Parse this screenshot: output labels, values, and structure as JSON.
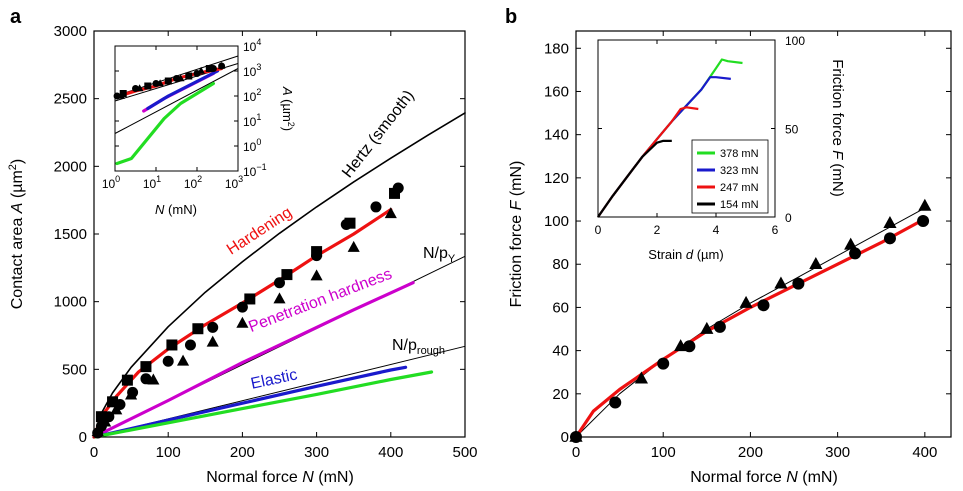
{
  "chart_data": [
    {
      "panel_label": "a",
      "type": "line",
      "xlabel": "Normal force N (mN)",
      "xlabel_parts": [
        "Normal force ",
        "N",
        " (mN)"
      ],
      "ylabel": "Contact area A (µm²)",
      "ylabel_parts": [
        "Contact area ",
        "A",
        " (µm",
        "2",
        ")"
      ],
      "xlim": [
        0,
        500
      ],
      "ylim": [
        0,
        3000
      ],
      "xticks": [
        "0",
        "100",
        "200",
        "300",
        "400",
        "500"
      ],
      "yticks": [
        "0",
        "500",
        "1000",
        "1500",
        "2000",
        "2500",
        "3000"
      ],
      "annotations": {
        "hertz": "Hertz (smooth)",
        "hardening": "Hardening",
        "npy_main": "N/p",
        "npy_sub": "Y",
        "penetration": "Penetration hardness",
        "nprough_main": "N/p",
        "nprough_sub": "rough",
        "elastic": "Elastic"
      },
      "series": [
        {
          "label": "Hertz (smooth)",
          "color": "#000000",
          "kind": "curve",
          "x": [
            0,
            10,
            25,
            50,
            100,
            150,
            200,
            250,
            300,
            350,
            400,
            450,
            500
          ],
          "y": [
            0,
            175,
            325,
            515,
            815,
            1070,
            1295,
            1505,
            1700,
            1885,
            2060,
            2230,
            2395
          ]
        },
        {
          "label": "N/pY",
          "color": "#000000",
          "kind": "thin",
          "x": [
            0,
            500
          ],
          "y": [
            0,
            1335
          ]
        },
        {
          "label": "N/prough",
          "color": "#000000",
          "kind": "thin",
          "x": [
            0,
            500
          ],
          "y": [
            0,
            670
          ]
        },
        {
          "label": "Penetration hardness",
          "color": "#cc00cc",
          "kind": "thick",
          "x": [
            0,
            100,
            200,
            300,
            350,
            430
          ],
          "y": [
            0,
            270,
            550,
            810,
            940,
            1140
          ]
        },
        {
          "label": "Elastic",
          "color": "#1a1acc",
          "kind": "thick",
          "x": [
            0,
            100,
            200,
            300,
            400,
            420
          ],
          "y": [
            0,
            125,
            250,
            375,
            495,
            515
          ]
        },
        {
          "label": "Elastic (green)",
          "color": "#22dd22",
          "kind": "thick",
          "x": [
            0,
            100,
            200,
            300,
            400,
            455
          ],
          "y": [
            0,
            105,
            210,
            315,
            425,
            480
          ]
        },
        {
          "label": "Hardening",
          "color": "#ee1111",
          "kind": "thick",
          "x": [
            0,
            10,
            30,
            60,
            100,
            150,
            200,
            250,
            300,
            350,
            400
          ],
          "y": [
            0,
            150,
            300,
            480,
            650,
            830,
            990,
            1160,
            1340,
            1500,
            1680
          ]
        },
        {
          "label": "circles",
          "color": "#000000",
          "kind": "markers",
          "marker": "circle",
          "x": [
            5,
            10,
            20,
            35,
            52,
            70,
            100,
            130,
            160,
            200,
            250,
            300,
            340,
            380,
            410
          ],
          "y": [
            30,
            80,
            150,
            240,
            330,
            430,
            560,
            680,
            810,
            960,
            1140,
            1340,
            1570,
            1700,
            1840
          ]
        },
        {
          "label": "squares",
          "color": "#000000",
          "kind": "markers",
          "marker": "square",
          "x": [
            10,
            25,
            45,
            70,
            105,
            140,
            210,
            260,
            300,
            345,
            405
          ],
          "y": [
            150,
            260,
            420,
            520,
            680,
            800,
            1020,
            1200,
            1370,
            1580,
            1800
          ]
        },
        {
          "label": "triangles",
          "color": "#000000",
          "kind": "markers",
          "marker": "triangle",
          "x": [
            5,
            15,
            30,
            50,
            80,
            120,
            160,
            200,
            250,
            300,
            350,
            400
          ],
          "y": [
            40,
            110,
            200,
            310,
            420,
            560,
            700,
            840,
            1020,
            1190,
            1400,
            1650
          ]
        }
      ],
      "inset": {
        "xlabel_parts": [
          "N",
          " (mN)"
        ],
        "ylabel_parts": [
          "A",
          " (µm",
          "2",
          ")"
        ],
        "x_log_range": [
          0,
          3
        ],
        "y_log_range": [
          -1,
          4
        ],
        "xticks": [
          {
            "base": "10",
            "exp": "0"
          },
          {
            "base": "10",
            "exp": "1"
          },
          {
            "base": "10",
            "exp": "2"
          },
          {
            "base": "10",
            "exp": "3"
          }
        ],
        "yticks": [
          {
            "base": "10",
            "exp": "−1"
          },
          {
            "base": "10",
            "exp": "0"
          },
          {
            "base": "10",
            "exp": "1"
          },
          {
            "base": "10",
            "exp": "2"
          },
          {
            "base": "10",
            "exp": "3"
          },
          {
            "base": "10",
            "exp": "4"
          }
        ],
        "series": [
          {
            "label": "guide upper",
            "color": "#000000",
            "kind": "thin",
            "lx": [
              0,
              3
            ],
            "ly": [
              2.0,
              3.6
            ]
          },
          {
            "label": "guide lower",
            "color": "#000000",
            "kind": "thin",
            "lx": [
              0,
              3
            ],
            "ly": [
              0.5,
              3.1
            ]
          },
          {
            "label": "guide mid",
            "color": "#000000",
            "kind": "thin",
            "lx": [
              0,
              3
            ],
            "ly": [
              1.8,
              3.3
            ]
          },
          {
            "label": "green",
            "color": "#22dd22",
            "kind": "thick",
            "lx": [
              0.05,
              0.4,
              0.8,
              1.2,
              1.6,
              2.0,
              2.4
            ],
            "ly": [
              -0.7,
              -0.5,
              0.3,
              1.1,
              1.7,
              2.1,
              2.5
            ]
          },
          {
            "label": "magenta",
            "color": "#cc00cc",
            "kind": "thick",
            "lx": [
              0.7,
              1.2,
              1.8,
              2.4
            ],
            "ly": [
              1.4,
              1.9,
              2.4,
              2.9
            ]
          },
          {
            "label": "blue",
            "color": "#1a1acc",
            "kind": "thick",
            "lx": [
              0.8,
              1.3,
              1.9,
              2.5
            ],
            "ly": [
              1.5,
              2.0,
              2.5,
              3.0
            ]
          },
          {
            "label": "red",
            "color": "#ee1111",
            "kind": "thick",
            "lx": [
              0.1,
              0.5,
              1.0,
              1.5,
              2.0,
              2.6
            ],
            "ly": [
              2.0,
              2.2,
              2.4,
              2.7,
              2.9,
              3.1
            ]
          },
          {
            "label": "circles",
            "color": "#000000",
            "kind": "markers",
            "marker": "circle",
            "lx": [
              0.05,
              0.5,
              1.0,
              1.5,
              2.0,
              2.4,
              2.6
            ],
            "ly": [
              2.0,
              2.3,
              2.5,
              2.7,
              2.9,
              3.1,
              3.2
            ]
          },
          {
            "label": "squares",
            "color": "#000000",
            "kind": "markers",
            "marker": "square",
            "lx": [
              0.2,
              0.8,
              1.3,
              1.8,
              2.3
            ],
            "ly": [
              2.1,
              2.4,
              2.6,
              2.8,
              3.1
            ]
          },
          {
            "label": "triangles",
            "color": "#000000",
            "kind": "markers",
            "marker": "triangle",
            "lx": [
              0.15,
              0.6,
              1.1,
              1.6,
              2.1,
              2.6
            ],
            "ly": [
              2.0,
              2.3,
              2.5,
              2.7,
              3.0,
              3.2
            ]
          }
        ]
      }
    },
    {
      "panel_label": "b",
      "type": "line",
      "xlabel": "Normal force N (mN)",
      "xlabel_parts": [
        "Normal force ",
        "N",
        " (mN)"
      ],
      "ylabel": "Friction force F (mN)",
      "ylabel_parts": [
        "Friction force ",
        "F",
        " (mN)"
      ],
      "xlim": [
        0,
        430
      ],
      "ylim": [
        0,
        188
      ],
      "xticks": [
        0,
        100,
        200,
        300,
        400
      ],
      "yticks": [
        0,
        20,
        40,
        60,
        80,
        100,
        120,
        140,
        160,
        180
      ],
      "series": [
        {
          "label": "fit",
          "color": "#000000",
          "kind": "thin",
          "x": [
            0,
            50,
            100,
            150,
            200,
            250,
            300,
            350,
            400
          ],
          "y": [
            0,
            20,
            36,
            50,
            62,
            73,
            84,
            95,
            106
          ]
        },
        {
          "label": "red",
          "color": "#ee1111",
          "kind": "thick",
          "x": [
            0,
            20,
            50,
            100,
            150,
            200,
            250,
            300,
            350,
            400
          ],
          "y": [
            0,
            12,
            22,
            36,
            49,
            60,
            70,
            80,
            90,
            101
          ]
        },
        {
          "label": "circles",
          "color": "#000000",
          "kind": "markers",
          "marker": "circle",
          "x": [
            0,
            45,
            100,
            130,
            165,
            215,
            255,
            320,
            360,
            398
          ],
          "y": [
            0,
            16,
            34,
            42,
            51,
            61,
            71,
            85,
            92,
            100
          ]
        },
        {
          "label": "triangles",
          "color": "#000000",
          "kind": "markers",
          "marker": "triangle",
          "x": [
            0,
            75,
            120,
            150,
            195,
            235,
            275,
            315,
            360,
            400
          ],
          "y": [
            0,
            27,
            42,
            50,
            62,
            71,
            80,
            89,
            99,
            107
          ]
        }
      ],
      "inset": {
        "xlabel_parts": [
          "Strain ",
          "d",
          " (µm)"
        ],
        "ylabel_parts": [
          "Friction force ",
          "F",
          " (mN)"
        ],
        "xlim": [
          0,
          6
        ],
        "ylim": [
          0,
          100
        ],
        "xticks": [
          0,
          2,
          4,
          6
        ],
        "yticks": [
          0,
          50,
          100
        ],
        "legend": [
          {
            "label": "378 mN",
            "color": "#22dd22"
          },
          {
            "label": "323 mN",
            "color": "#1a1acc"
          },
          {
            "label": "247 mN",
            "color": "#ee1111"
          },
          {
            "label": "154 mN",
            "color": "#000000"
          }
        ],
        "series": [
          {
            "label": "378 mN",
            "color": "#22dd22",
            "x": [
              0,
              0.5,
              1,
              1.5,
              2,
              2.5,
              3,
              3.5,
              4.0,
              4.2,
              4.4,
              4.9
            ],
            "y": [
              0,
              12,
              23,
              34,
              44,
              54,
              63,
              72,
              84,
              89,
              88,
              87
            ]
          },
          {
            "label": "323 mN",
            "color": "#1a1acc",
            "x": [
              0,
              0.5,
              1,
              1.5,
              2,
              2.5,
              3,
              3.5,
              3.8,
              4.0,
              4.5
            ],
            "y": [
              0,
              12,
              23,
              34,
              44,
              54,
              63,
              72,
              79,
              79,
              78
            ]
          },
          {
            "label": "247 mN",
            "color": "#ee1111",
            "x": [
              0,
              0.5,
              1,
              1.5,
              2,
              2.5,
              2.8,
              3.0,
              3.4
            ],
            "y": [
              0,
              12,
              23,
              34,
              44,
              54,
              61,
              62,
              61
            ]
          },
          {
            "label": "154 mN",
            "color": "#000000",
            "x": [
              0,
              0.5,
              1,
              1.5,
              2.0,
              2.2,
              2.5
            ],
            "y": [
              0,
              12,
              23,
              34,
              42,
              43,
              43
            ]
          }
        ]
      }
    }
  ]
}
